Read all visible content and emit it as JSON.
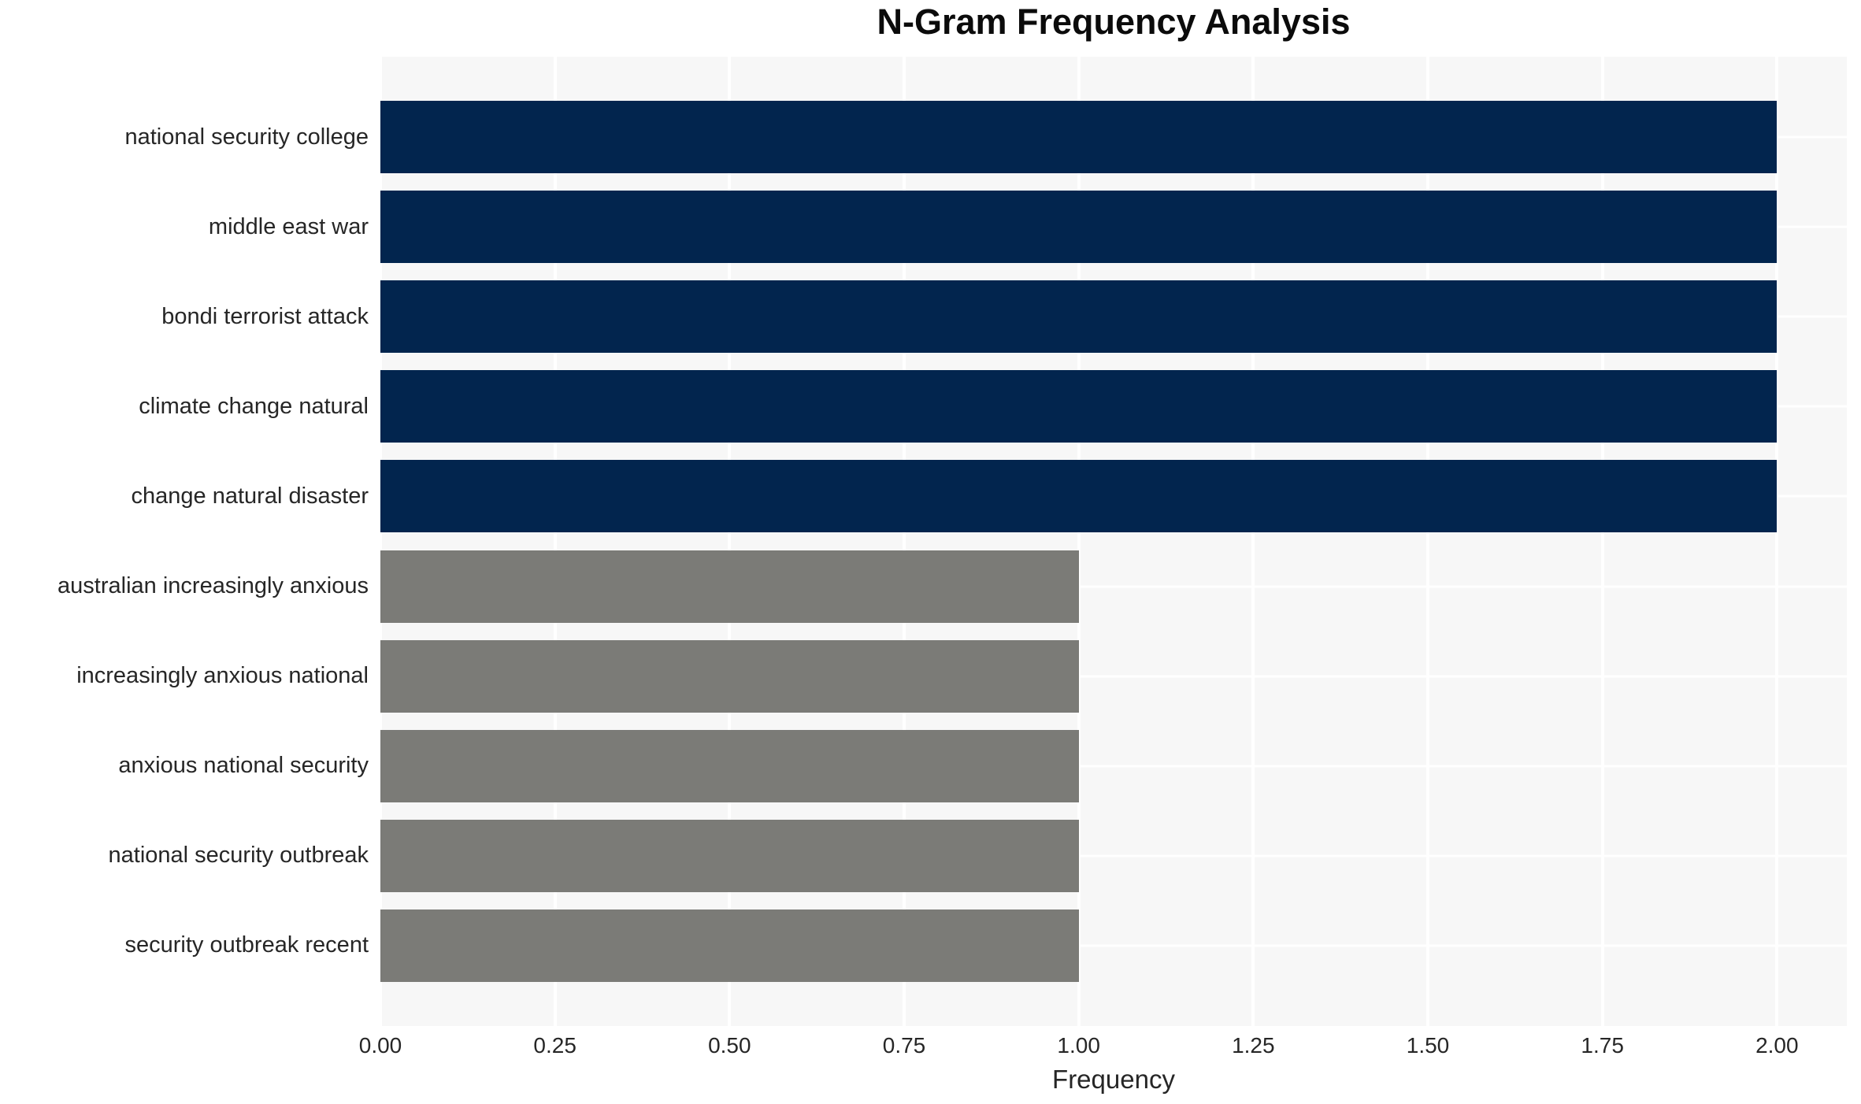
{
  "chart_data": {
    "type": "bar",
    "orientation": "horizontal",
    "title": "N-Gram Frequency Analysis",
    "xlabel": "Frequency",
    "ylabel": "",
    "categories": [
      "national security college",
      "middle east war",
      "bondi terrorist attack",
      "climate change natural",
      "change natural disaster",
      "australian increasingly anxious",
      "increasingly anxious national",
      "anxious national security",
      "national security outbreak",
      "security outbreak recent"
    ],
    "values": [
      2,
      2,
      2,
      2,
      2,
      1,
      1,
      1,
      1,
      1
    ],
    "bar_colors": [
      "#02254e",
      "#02254e",
      "#02254e",
      "#02254e",
      "#02254e",
      "#7b7b77",
      "#7b7b77",
      "#7b7b77",
      "#7b7b77",
      "#7b7b77"
    ],
    "xlim": [
      0,
      2.1
    ],
    "xticks": [
      0,
      0.25,
      0.5,
      0.75,
      1.0,
      1.25,
      1.5,
      1.75,
      2.0
    ],
    "xtick_labels": [
      "0.00",
      "0.25",
      "0.50",
      "0.75",
      "1.00",
      "1.25",
      "1.50",
      "1.75",
      "2.00"
    ],
    "grid": true,
    "legend": "none",
    "colors": {
      "plot_background": "#f7f7f7",
      "grid_line": "#ffffff",
      "high_value_bar": "#02254e",
      "low_value_bar": "#7b7b77",
      "text": "#262626",
      "title_text": "#0b0b0b"
    }
  }
}
